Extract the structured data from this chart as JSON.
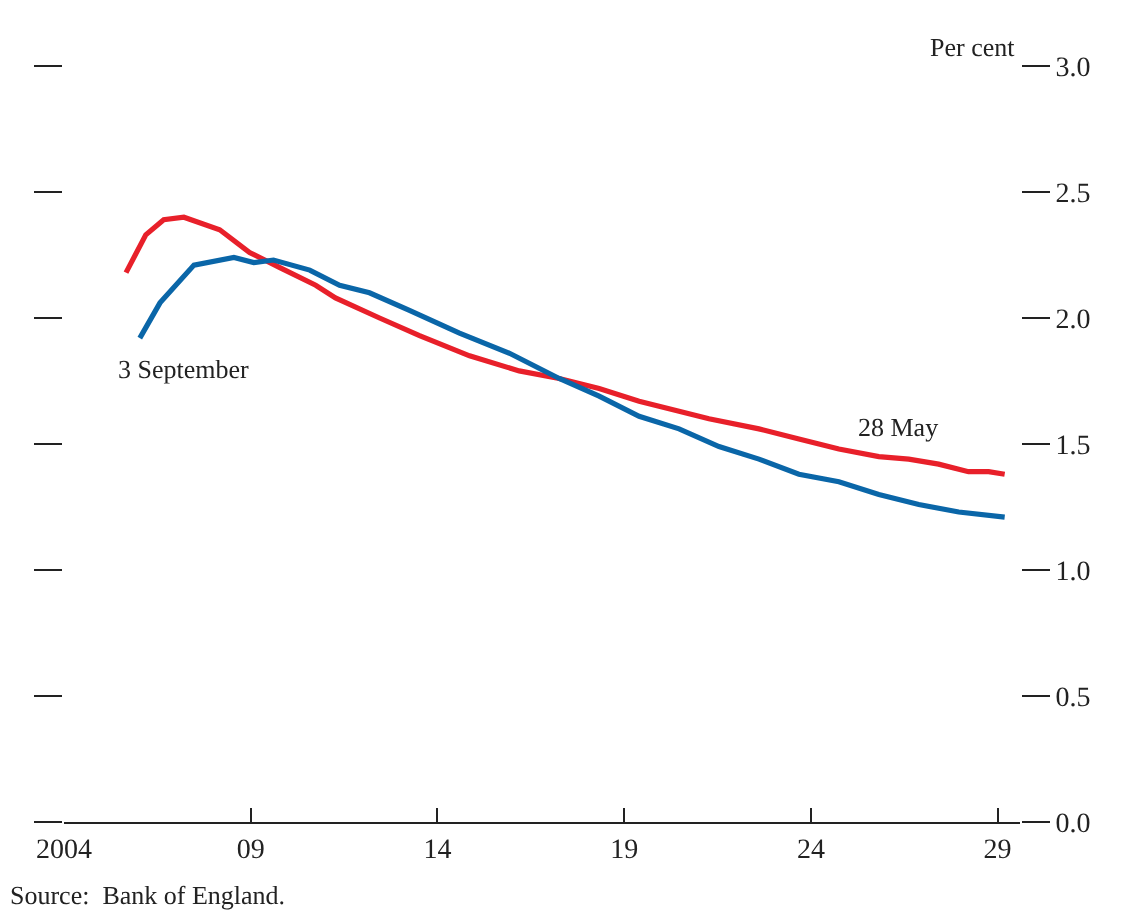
{
  "chart_data": {
    "type": "line",
    "series": [
      {
        "name": "28 May",
        "color": "#e8202a",
        "x": [
          2005.66,
          2006.19,
          2006.67,
          2007.21,
          2008.17,
          2008.97,
          2009.78,
          2010.74,
          2011.27,
          2012.45,
          2013.52,
          2014.86,
          2016.19,
          2017.26,
          2018.33,
          2019.4,
          2020.47,
          2021.27,
          2022.61,
          2023.68,
          2024.75,
          2025.82,
          2026.62,
          2027.42,
          2028.22,
          2028.76,
          2029.19
        ],
        "values": [
          2.18,
          2.33,
          2.39,
          2.4,
          2.35,
          2.26,
          2.2,
          2.13,
          2.08,
          2.0,
          1.93,
          1.85,
          1.79,
          1.76,
          1.72,
          1.67,
          1.63,
          1.6,
          1.56,
          1.52,
          1.48,
          1.45,
          1.44,
          1.42,
          1.39,
          1.39,
          1.38
        ]
      },
      {
        "name": "3 September",
        "color": "#0a66a8",
        "x": [
          2006.03,
          2006.57,
          2007.48,
          2008.55,
          2009.08,
          2009.61,
          2010.58,
          2011.38,
          2012.18,
          2013.25,
          2014.59,
          2015.93,
          2017.26,
          2018.33,
          2019.4,
          2020.47,
          2021.54,
          2022.61,
          2023.68,
          2024.75,
          2025.82,
          2026.89,
          2027.96,
          2029.19
        ],
        "values": [
          1.92,
          2.06,
          2.21,
          2.24,
          2.22,
          2.23,
          2.19,
          2.13,
          2.1,
          2.03,
          1.94,
          1.86,
          1.76,
          1.69,
          1.61,
          1.56,
          1.49,
          1.44,
          1.38,
          1.35,
          1.3,
          1.26,
          1.23,
          1.21
        ]
      }
    ],
    "ylabel": "Per cent",
    "xlim": [
      2004,
      2029.6
    ],
    "xticks": [
      {
        "value": 2004,
        "label": "2004"
      },
      {
        "value": 2009,
        "label": "09"
      },
      {
        "value": 2014,
        "label": "14"
      },
      {
        "value": 2019,
        "label": "19"
      },
      {
        "value": 2024,
        "label": "24"
      },
      {
        "value": 2029,
        "label": "29"
      }
    ],
    "ylim": [
      0,
      3.0
    ],
    "yticks": [
      {
        "value": 0,
        "label": "0.0"
      },
      {
        "value": 0.5,
        "label": "0.5"
      },
      {
        "value": 1.0,
        "label": "1.0"
      },
      {
        "value": 1.5,
        "label": "1.5"
      },
      {
        "value": 2.0,
        "label": "2.0"
      },
      {
        "value": 2.5,
        "label": "2.5"
      },
      {
        "value": 3.0,
        "label": "3.0"
      }
    ],
    "annotations": [
      "Source:  Bank of England."
    ],
    "legend": false,
    "marker": "none",
    "line_style": "solid"
  }
}
